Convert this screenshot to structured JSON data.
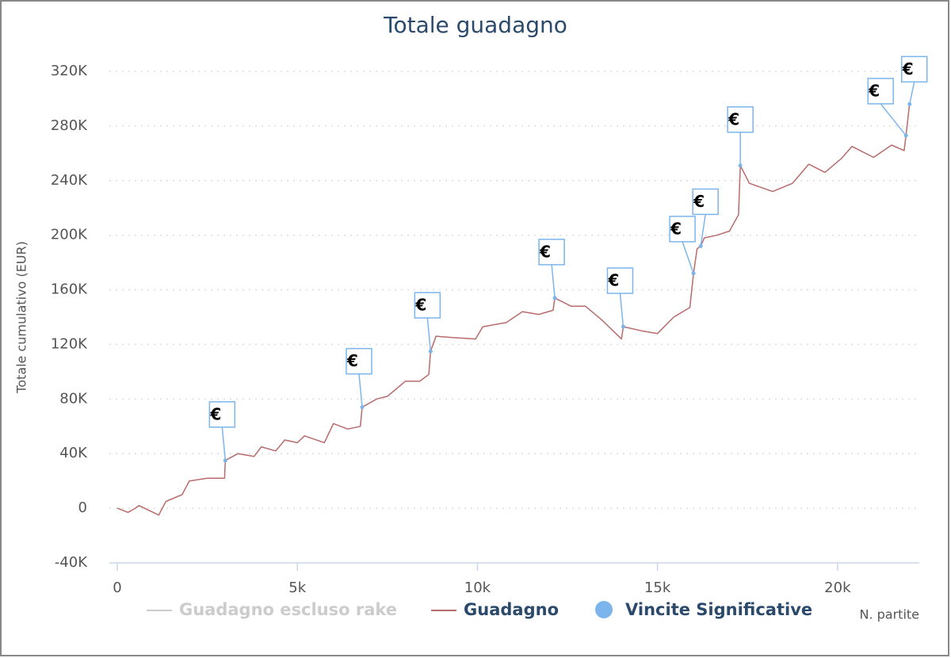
{
  "chart_data": {
    "type": "line",
    "title": "Totale guadagno",
    "y_label": "Totale cumulativo (EUR)",
    "x_label": "N. partite",
    "xlim": [
      -220,
      22270
    ],
    "ylim": [
      -40000,
      320000
    ],
    "xticks": [
      0,
      {
        "value": 5000,
        "label": "5k"
      },
      {
        "value": 10000,
        "label": "10k"
      },
      {
        "value": 15000,
        "label": "15k"
      },
      {
        "value": 20000,
        "label": "20k"
      }
    ],
    "yticks": [
      {
        "value": -40000,
        "label": "-40K"
      },
      0,
      {
        "value": 40000,
        "label": "40K"
      },
      {
        "value": 80000,
        "label": "80K"
      },
      {
        "value": 120000,
        "label": "120K"
      },
      {
        "value": 160000,
        "label": "160K"
      },
      {
        "value": 200000,
        "label": "200K"
      },
      {
        "value": 240000,
        "label": "240K"
      },
      {
        "value": 280000,
        "label": "280K"
      },
      {
        "value": 320000,
        "label": "320K"
      }
    ],
    "grid": true,
    "series": [
      {
        "name": "Guadagno escluso rake",
        "color": "#cccccc",
        "visible": false
      },
      {
        "name": "Guadagno",
        "color": "#b86b6b",
        "visible": true,
        "x": [
          0,
          300,
          500,
          600,
          1150,
          1350,
          1800,
          2000,
          2500,
          2980,
          3000,
          3350,
          3800,
          4000,
          4400,
          4650,
          5000,
          5200,
          5750,
          6000,
          6400,
          6750,
          6800,
          7200,
          7500,
          8000,
          8400,
          8650,
          8700,
          8850,
          9300,
          9950,
          10150,
          10800,
          11250,
          11700,
          12100,
          12150,
          12600,
          13000,
          13450,
          14000,
          14050,
          14550,
          15000,
          15450,
          15900,
          16000,
          16100,
          16200,
          16300,
          16650,
          17000,
          17250,
          17300,
          17550,
          18200,
          18750,
          19200,
          19650,
          20100,
          20400,
          21000,
          21500,
          21850,
          21900,
          22000
        ],
        "values": [
          0,
          -3000,
          0,
          2000,
          -5000,
          5000,
          10000,
          20000,
          22000,
          22000,
          35000,
          40000,
          38000,
          45000,
          42000,
          50000,
          48000,
          53000,
          48000,
          62000,
          58000,
          60000,
          74000,
          80000,
          82000,
          93000,
          93000,
          98000,
          115000,
          126000,
          125000,
          124000,
          133000,
          136000,
          144000,
          142000,
          145000,
          154000,
          148000,
          148000,
          138000,
          124000,
          133000,
          130000,
          128000,
          140000,
          147000,
          172000,
          190000,
          192000,
          198000,
          200000,
          203000,
          215000,
          251000,
          238000,
          232000,
          238000,
          252000,
          246000,
          256000,
          265000,
          257000,
          266000,
          262000,
          273000,
          296000
        ]
      },
      {
        "name": "Vincite Significative",
        "color": "#7cb5ec",
        "visible": true,
        "type": "scatter",
        "marker_label": "€",
        "x": [
          3000,
          6800,
          8700,
          12150,
          14050,
          16000,
          16200,
          17300,
          21900,
          22000
        ],
        "values": [
          35000,
          74000,
          115000,
          154000,
          133000,
          172000,
          192000,
          251000,
          273000,
          296000
        ]
      }
    ]
  }
}
